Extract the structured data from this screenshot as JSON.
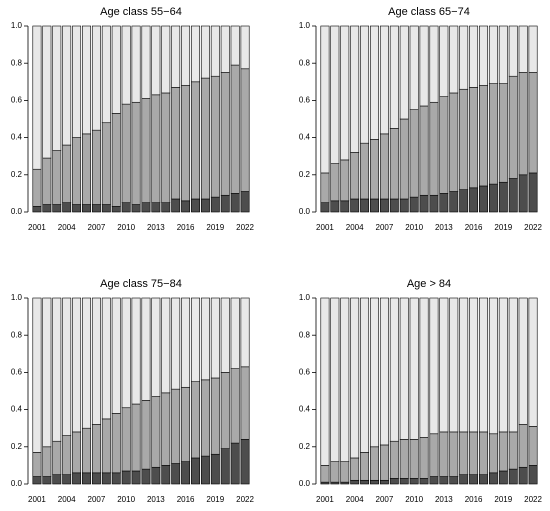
{
  "chart_data": [
    {
      "type": "bar",
      "stacked": true,
      "title": "Age class 55−64",
      "categories": [
        "2001",
        null,
        null,
        "2004",
        null,
        null,
        "2007",
        null,
        null,
        "2010",
        null,
        null,
        "2013",
        null,
        null,
        "2016",
        null,
        null,
        "2019",
        null,
        null,
        "2022"
      ],
      "series": [
        {
          "color": "#4d4d4d",
          "values": [
            0.03,
            0.04,
            0.04,
            0.05,
            0.04,
            0.04,
            0.04,
            0.04,
            0.03,
            0.05,
            0.04,
            0.05,
            0.05,
            0.05,
            0.07,
            0.06,
            0.07,
            0.07,
            0.08,
            0.09,
            0.1,
            0.11
          ]
        },
        {
          "color": "#a9a9a9",
          "values": [
            0.2,
            0.25,
            0.29,
            0.31,
            0.36,
            0.38,
            0.4,
            0.44,
            0.5,
            0.53,
            0.55,
            0.56,
            0.58,
            0.59,
            0.6,
            0.62,
            0.63,
            0.65,
            0.65,
            0.66,
            0.69,
            0.66
          ]
        },
        {
          "color": "#e8e8e8",
          "values": [
            0.77,
            0.71,
            0.67,
            0.64,
            0.6,
            0.58,
            0.56,
            0.52,
            0.47,
            0.42,
            0.41,
            0.39,
            0.37,
            0.36,
            0.33,
            0.32,
            0.3,
            0.28,
            0.27,
            0.25,
            0.21,
            0.23
          ]
        }
      ],
      "ylim": [
        0,
        1
      ],
      "yticks": [
        {
          "value": 0,
          "label": "0.0"
        },
        0.2,
        0.4,
        0.6,
        0.8,
        {
          "value": 1,
          "label": "1.0"
        }
      ]
    },
    {
      "type": "bar",
      "stacked": true,
      "title": "Age class 65−74",
      "categories": [
        "2001",
        null,
        null,
        "2004",
        null,
        null,
        "2007",
        null,
        null,
        "2010",
        null,
        null,
        "2013",
        null,
        null,
        "2016",
        null,
        null,
        "2019",
        null,
        null,
        "2022"
      ],
      "series": [
        {
          "color": "#4d4d4d",
          "values": [
            0.05,
            0.06,
            0.06,
            0.07,
            0.07,
            0.07,
            0.07,
            0.07,
            0.07,
            0.08,
            0.09,
            0.09,
            0.1,
            0.11,
            0.12,
            0.13,
            0.14,
            0.15,
            0.16,
            0.18,
            0.2,
            0.21
          ]
        },
        {
          "color": "#a9a9a9",
          "values": [
            0.16,
            0.2,
            0.22,
            0.25,
            0.3,
            0.32,
            0.35,
            0.38,
            0.43,
            0.47,
            0.48,
            0.5,
            0.52,
            0.53,
            0.54,
            0.54,
            0.54,
            0.54,
            0.53,
            0.55,
            0.55,
            0.54
          ]
        },
        {
          "color": "#e8e8e8",
          "values": [
            0.79,
            0.74,
            0.72,
            0.68,
            0.63,
            0.61,
            0.58,
            0.55,
            0.5,
            0.45,
            0.43,
            0.41,
            0.38,
            0.36,
            0.34,
            0.33,
            0.32,
            0.31,
            0.31,
            0.27,
            0.25,
            0.25
          ]
        }
      ],
      "ylim": [
        0,
        1
      ],
      "yticks": [
        {
          "value": 0,
          "label": "0.0"
        },
        0.2,
        0.4,
        0.6,
        0.8,
        {
          "value": 1,
          "label": "1.0"
        }
      ]
    },
    {
      "type": "bar",
      "stacked": true,
      "title": "Age class 75−84",
      "categories": [
        "2001",
        null,
        null,
        "2004",
        null,
        null,
        "2007",
        null,
        null,
        "2010",
        null,
        null,
        "2013",
        null,
        null,
        "2016",
        null,
        null,
        "2019",
        null,
        null,
        "2022"
      ],
      "series": [
        {
          "color": "#4d4d4d",
          "values": [
            0.04,
            0.04,
            0.05,
            0.05,
            0.06,
            0.06,
            0.06,
            0.06,
            0.06,
            0.07,
            0.07,
            0.08,
            0.09,
            0.1,
            0.11,
            0.12,
            0.14,
            0.15,
            0.16,
            0.19,
            0.22,
            0.24
          ]
        },
        {
          "color": "#a9a9a9",
          "values": [
            0.13,
            0.16,
            0.18,
            0.21,
            0.22,
            0.24,
            0.26,
            0.29,
            0.32,
            0.34,
            0.36,
            0.37,
            0.38,
            0.39,
            0.4,
            0.4,
            0.41,
            0.41,
            0.41,
            0.41,
            0.4,
            0.39
          ]
        },
        {
          "color": "#e8e8e8",
          "values": [
            0.83,
            0.8,
            0.77,
            0.74,
            0.72,
            0.7,
            0.68,
            0.65,
            0.62,
            0.59,
            0.57,
            0.55,
            0.53,
            0.51,
            0.49,
            0.48,
            0.45,
            0.44,
            0.43,
            0.4,
            0.38,
            0.37
          ]
        }
      ],
      "ylim": [
        0,
        1
      ],
      "yticks": [
        {
          "value": 0,
          "label": "0.0"
        },
        0.2,
        0.4,
        0.6,
        0.8,
        {
          "value": 1,
          "label": "1.0"
        }
      ]
    },
    {
      "type": "bar",
      "stacked": true,
      "title": "Age > 84",
      "categories": [
        "2001",
        null,
        null,
        "2004",
        null,
        null,
        "2007",
        null,
        null,
        "2010",
        null,
        null,
        "2013",
        null,
        null,
        "2016",
        null,
        null,
        "2019",
        null,
        null,
        "2022"
      ],
      "series": [
        {
          "color": "#4d4d4d",
          "values": [
            0.01,
            0.01,
            0.01,
            0.02,
            0.02,
            0.02,
            0.02,
            0.03,
            0.03,
            0.03,
            0.03,
            0.04,
            0.04,
            0.04,
            0.05,
            0.05,
            0.05,
            0.06,
            0.07,
            0.08,
            0.09,
            0.1
          ]
        },
        {
          "color": "#a9a9a9",
          "values": [
            0.09,
            0.11,
            0.11,
            0.12,
            0.15,
            0.18,
            0.19,
            0.2,
            0.21,
            0.21,
            0.22,
            0.23,
            0.24,
            0.24,
            0.23,
            0.23,
            0.23,
            0.21,
            0.21,
            0.2,
            0.23,
            0.21
          ]
        },
        {
          "color": "#e8e8e8",
          "values": [
            0.9,
            0.88,
            0.88,
            0.86,
            0.83,
            0.8,
            0.79,
            0.77,
            0.76,
            0.76,
            0.75,
            0.73,
            0.72,
            0.72,
            0.72,
            0.72,
            0.72,
            0.73,
            0.72,
            0.72,
            0.68,
            0.69
          ]
        }
      ],
      "ylim": [
        0,
        1
      ],
      "yticks": [
        {
          "value": 0,
          "label": "0.0"
        },
        0.2,
        0.4,
        0.6,
        0.8,
        {
          "value": 1,
          "label": "1.0"
        }
      ]
    }
  ]
}
